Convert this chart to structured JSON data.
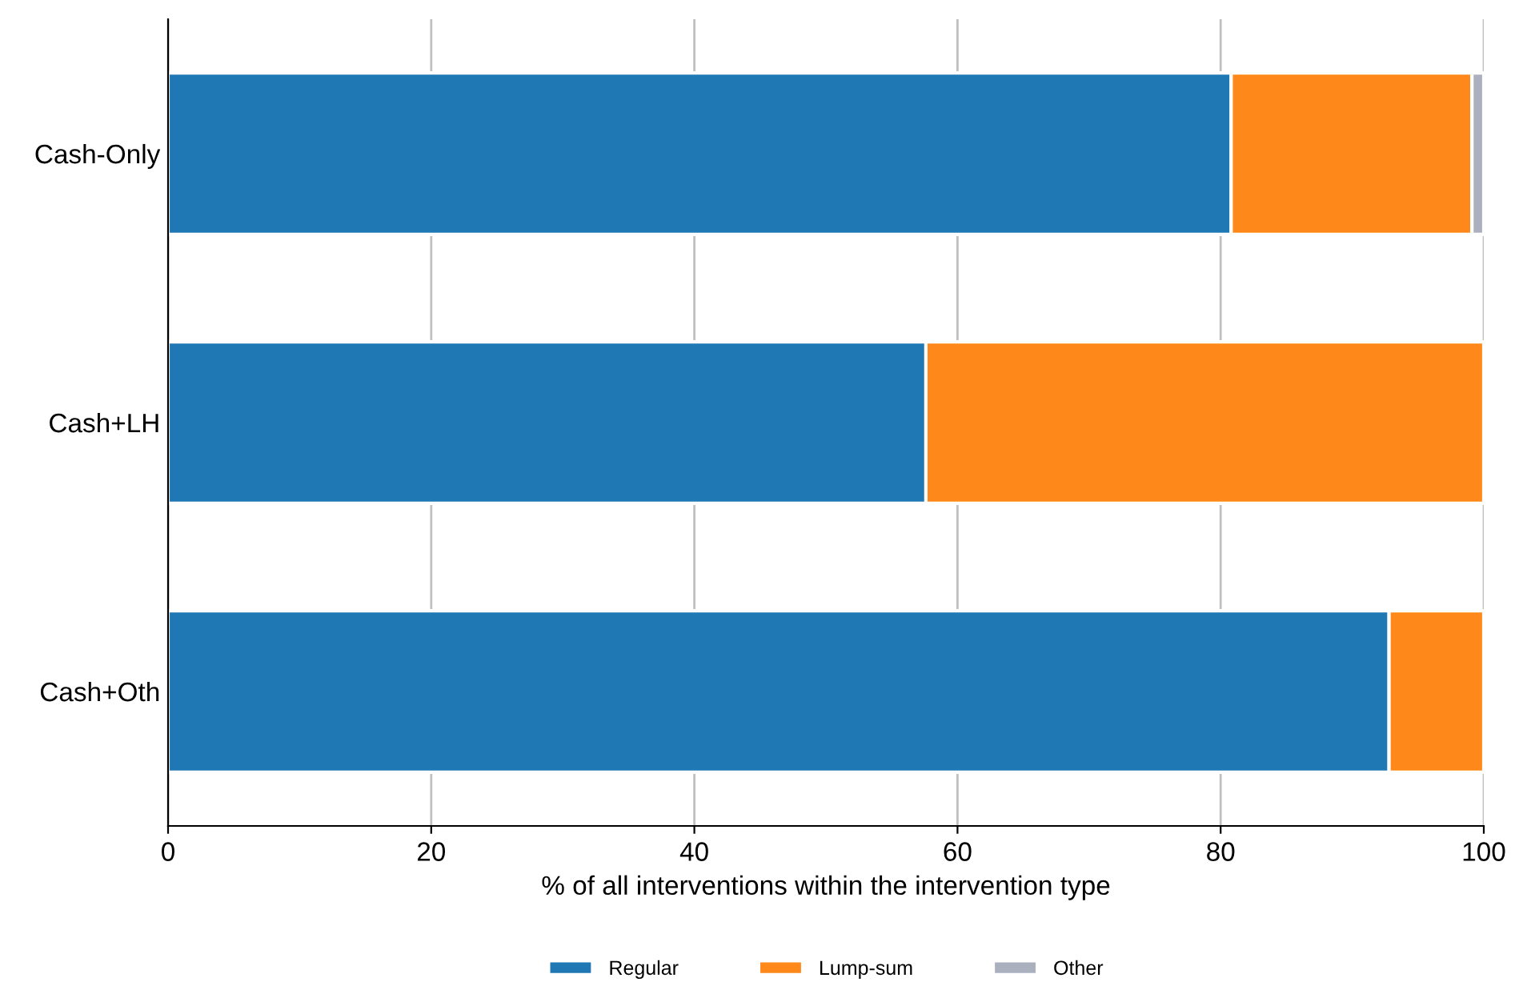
{
  "chart_data": {
    "type": "bar",
    "orientation": "horizontal",
    "stacked": true,
    "categories": [
      "Cash-Only",
      "Cash+LH",
      "Cash+Oth"
    ],
    "series": [
      {
        "name": "Regular",
        "color": "#1f77b4",
        "values": [
          80.8,
          57.6,
          92.8
        ]
      },
      {
        "name": "Lump-sum",
        "color": "#ff881a",
        "values": [
          18.3,
          42.4,
          7.2
        ]
      },
      {
        "name": "Other",
        "color": "#abb0bf",
        "values": [
          0.9,
          null,
          null
        ]
      }
    ],
    "xlabel": "% of all interventions within the intervention type",
    "xlim": [
      0,
      100
    ],
    "xticks": [
      0,
      20,
      40,
      60,
      80,
      100
    ],
    "grid": "x",
    "legend": "bottom"
  }
}
